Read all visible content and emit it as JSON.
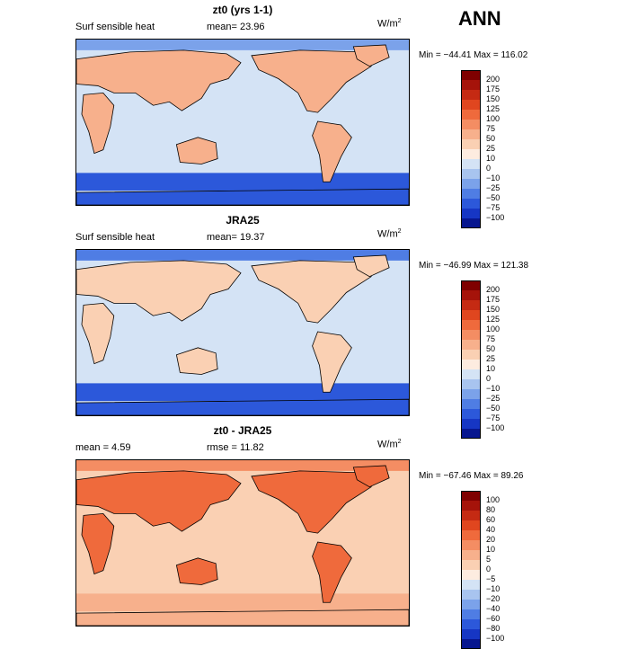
{
  "season": "ANN",
  "panels": [
    {
      "title": "zt0 (yrs 1-1)",
      "left_text": "Surf sensible heat",
      "mid_text": "mean=  23.96",
      "units": "W/m",
      "units_sup": "2",
      "minmax": "Min = −44.41  Max = 116.02",
      "colorbar": {
        "labels": [
          "200",
          "175",
          "150",
          "125",
          "100",
          "75",
          "50",
          "25",
          "10",
          "0",
          "−10",
          "−25",
          "−50",
          "−75",
          "−100"
        ],
        "colors": [
          "#7f0000",
          "#a5130a",
          "#c52a13",
          "#e0461f",
          "#ef6a3c",
          "#f48d63",
          "#f7b08c",
          "#fad0b3",
          "#fdece0",
          "#d4e3f5",
          "#a8c4ef",
          "#7ba2ea",
          "#4f7de4",
          "#2c58da",
          "#1636c4",
          "#07168f"
        ]
      },
      "map": {
        "ocean_color": "#d4e3f5",
        "land_color": "#f7b08c",
        "north_band_color": "#7ba2ea",
        "south_band_color": "#2c58da"
      }
    },
    {
      "title": "JRA25",
      "left_text": "Surf sensible heat",
      "mid_text": "mean=  19.37",
      "units": "W/m",
      "units_sup": "2",
      "minmax": "Min = −46.99  Max = 121.38",
      "colorbar": {
        "labels": [
          "200",
          "175",
          "150",
          "125",
          "100",
          "75",
          "50",
          "25",
          "10",
          "0",
          "−10",
          "−25",
          "−50",
          "−75",
          "−100"
        ],
        "colors": [
          "#7f0000",
          "#a5130a",
          "#c52a13",
          "#e0461f",
          "#ef6a3c",
          "#f48d63",
          "#f7b08c",
          "#fad0b3",
          "#fdece0",
          "#d4e3f5",
          "#a8c4ef",
          "#7ba2ea",
          "#4f7de4",
          "#2c58da",
          "#1636c4",
          "#07168f"
        ]
      },
      "map": {
        "ocean_color": "#d4e3f5",
        "land_color": "#fad0b3",
        "north_band_color": "#4f7de4",
        "south_band_color": "#2c58da"
      }
    },
    {
      "title": "zt0 - JRA25",
      "left_text": "mean =    4.59",
      "mid_text": "rmse =   11.82",
      "units": "W/m",
      "units_sup": "2",
      "minmax": "Min = −67.46  Max =   89.26",
      "colorbar": {
        "labels": [
          "100",
          "80",
          "60",
          "40",
          "20",
          "10",
          "5",
          "0",
          "−5",
          "−10",
          "−20",
          "−40",
          "−60",
          "−80",
          "−100"
        ],
        "colors": [
          "#7f0000",
          "#a5130a",
          "#c52a13",
          "#e0461f",
          "#ef6a3c",
          "#f48d63",
          "#f7b08c",
          "#fad0b3",
          "#fdece0",
          "#d4e3f5",
          "#a8c4ef",
          "#7ba2ea",
          "#4f7de4",
          "#2c58da",
          "#1636c4",
          "#07168f"
        ]
      },
      "map": {
        "ocean_color": "#fad0b3",
        "land_color": "#ef6a3c",
        "north_band_color": "#f48d63",
        "south_band_color": "#f7b08c"
      }
    }
  ]
}
